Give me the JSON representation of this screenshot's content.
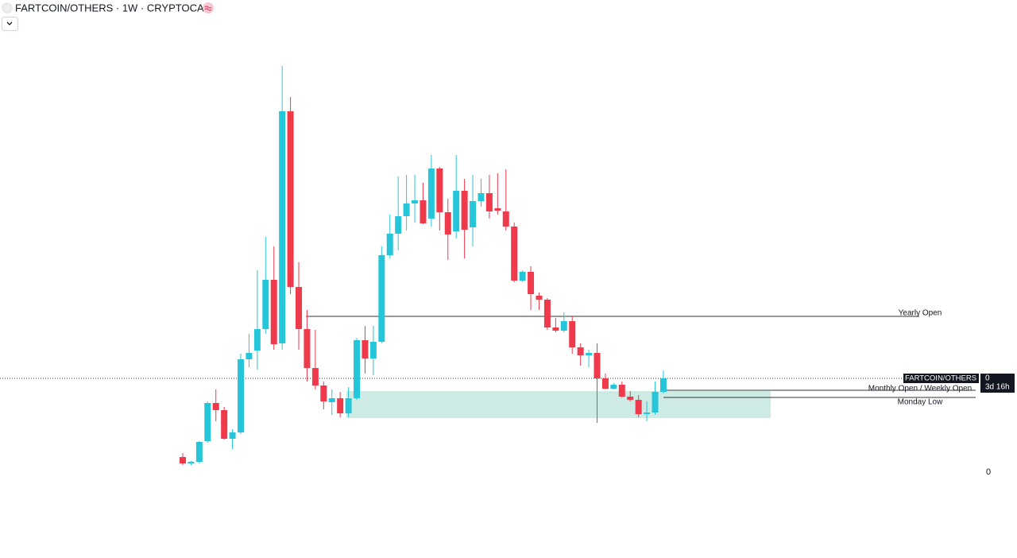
{
  "chart_data": {
    "type": "candlestick",
    "title": "FARTCOIN/OTHERS · 1W · CRYPTOCAP",
    "ylim": [
      0,
      110
    ],
    "yticks": [
      0
    ],
    "up_color": "#26c6da",
    "down_color": "#ef3a4c",
    "series": {
      "open": [
        3.8,
        2.2,
        2.6,
        7.8,
        17.4,
        15.6,
        8.4,
        10,
        28.4,
        30.6,
        36,
        48.4,
        32.4,
        90.8,
        46.6,
        36,
        26.2,
        21.8,
        17.6,
        18.6,
        14.8,
        18.6,
        33.2,
        28.6,
        32.8,
        54.6,
        60,
        64.4,
        67.6,
        68.4,
        63.8,
        76.4,
        65.4,
        60.6,
        70.8,
        61.6,
        68.2,
        70.2,
        66.4,
        65.6,
        61.8,
        48.2,
        50.4,
        44.4,
        43.4,
        36.4,
        35.6,
        38,
        31.4,
        29.4,
        30,
        23.6,
        21,
        22,
        19,
        18.2,
        14.6,
        15,
        20.2
      ],
      "high": [
        4.8,
        2.8,
        7.8,
        17.8,
        20.8,
        16.4,
        10.8,
        29.8,
        34.8,
        50.8,
        59.2,
        56.8,
        102.2,
        94.4,
        52.8,
        40.8,
        35.8,
        22.8,
        20.8,
        20.2,
        21.4,
        33.8,
        36.8,
        36.8,
        56.8,
        64.8,
        74.4,
        74.8,
        74.8,
        72.8,
        79.8,
        76.8,
        68.8,
        79.8,
        73.8,
        74.8,
        73.8,
        74.8,
        75.2,
        76.2,
        62.8,
        50.8,
        51.8,
        45.2,
        43.8,
        38.8,
        40.2,
        39.2,
        32.4,
        30.8,
        32.4,
        24.8,
        22.4,
        22.8,
        20.4,
        19.4,
        17.8,
        22.8,
        25.6
      ],
      "low": [
        1.8,
        1.8,
        2.2,
        7.4,
        12.8,
        8.2,
        5.8,
        9.6,
        26.4,
        25.8,
        34.8,
        30.8,
        30.8,
        44.8,
        30.8,
        22.8,
        20.8,
        15.8,
        14.4,
        13.8,
        13.8,
        18.2,
        24.8,
        24.4,
        32.4,
        53.8,
        55.8,
        60.8,
        62.8,
        62.4,
        61.8,
        60.8,
        53.4,
        58.8,
        53.8,
        56.8,
        66.8,
        63.8,
        64.8,
        60.8,
        47.8,
        47.8,
        40.8,
        40.8,
        35.8,
        35.2,
        35.2,
        29.8,
        26.8,
        26.4,
        12.4,
        20.8,
        20.8,
        18.8,
        17.8,
        13.8,
        12.8,
        14.4,
        19.8
      ],
      "close": [
        2.2,
        2.6,
        7.6,
        17.4,
        15.6,
        8.4,
        10,
        28.4,
        30,
        36,
        48.4,
        32.2,
        90.8,
        46.6,
        36,
        26.2,
        21.8,
        17.8,
        18.6,
        14.8,
        18.6,
        33.2,
        28.6,
        32.8,
        54.6,
        60,
        64.4,
        67.6,
        68.4,
        62.6,
        76.4,
        65.4,
        59.8,
        70.8,
        61,
        68.2,
        70.2,
        65.6,
        65.8,
        61.8,
        48.2,
        50.4,
        44.8,
        43.4,
        36.4,
        35.6,
        38,
        31.4,
        29.4,
        30,
        23.6,
        21,
        22,
        19,
        18.2,
        14.6,
        15,
        20.2,
        23.6
      ]
    },
    "levels": [
      {
        "label": "Yearly Open",
        "value": 39.2
      },
      {
        "label": "Monthly Open / Weekly Open",
        "value": 20.6
      },
      {
        "label": "Monday Low",
        "value": 18.8
      }
    ],
    "zone": {
      "top": 20.4,
      "bottom": 13.6,
      "color": "#cdeae5"
    },
    "price_tag": {
      "symbol": "FARTCOIN/OTHERS",
      "price": "0",
      "countdown": "3d 16h"
    }
  }
}
